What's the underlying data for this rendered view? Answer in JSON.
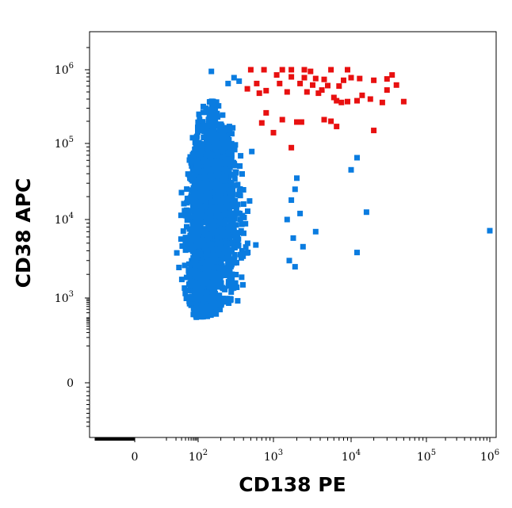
{
  "chart_data": {
    "type": "scatter",
    "xlabel": "CD138 PE",
    "ylabel": "CD38 APC",
    "x_scale": "biexponential",
    "y_scale": "biexponential",
    "xlim": [
      -500,
      1200000
    ],
    "ylim": [
      -200,
      2500000
    ],
    "grid": false,
    "x_ticks": [
      {
        "value": 0,
        "base": "0",
        "exp": ""
      },
      {
        "value": 100,
        "base": "10",
        "exp": "2"
      },
      {
        "value": 1000,
        "base": "10",
        "exp": "3"
      },
      {
        "value": 10000,
        "base": "10",
        "exp": "4"
      },
      {
        "value": 100000,
        "base": "10",
        "exp": "5"
      },
      {
        "value": 1000000,
        "base": "10",
        "exp": "6"
      }
    ],
    "y_ticks": [
      {
        "value": 0,
        "base": "0",
        "exp": ""
      },
      {
        "value": 1000,
        "base": "10",
        "exp": "3"
      },
      {
        "value": 10000,
        "base": "10",
        "exp": "4"
      },
      {
        "value": 100000,
        "base": "10",
        "exp": "5"
      },
      {
        "value": 1000000,
        "base": "10",
        "exp": "6"
      }
    ],
    "series": [
      {
        "color": "#0a7ce0",
        "cluster": {
          "center": [
            135,
            10000
          ],
          "x_spread": [
            50,
            450
          ],
          "y_spread": [
            200,
            380000
          ],
          "count": 2200
        },
        "points": [
          [
            150,
            950000
          ],
          [
            300,
            780000
          ],
          [
            350,
            700000
          ],
          [
            250,
            650000
          ],
          [
            2000,
            35000
          ],
          [
            1900,
            25000
          ],
          [
            1700,
            18000
          ],
          [
            2200,
            12000
          ],
          [
            1500,
            10000
          ],
          [
            3500,
            7000
          ],
          [
            1800,
            5800
          ],
          [
            2400,
            4500
          ],
          [
            1600,
            3000
          ],
          [
            1900,
            2500
          ],
          [
            12000,
            65000
          ],
          [
            10000,
            45000
          ],
          [
            16000,
            12500
          ],
          [
            12000,
            3800
          ],
          [
            1000000,
            7200
          ]
        ]
      },
      {
        "color": "#e81010",
        "points": [
          [
            500,
            1000000
          ],
          [
            750,
            1000000
          ],
          [
            1300,
            1000000
          ],
          [
            1700,
            1000000
          ],
          [
            2500,
            1000000
          ],
          [
            5500,
            1000000
          ],
          [
            9000,
            1000000
          ],
          [
            3000,
            950000
          ],
          [
            1100,
            850000
          ],
          [
            1700,
            800000
          ],
          [
            2500,
            780000
          ],
          [
            3500,
            760000
          ],
          [
            4500,
            740000
          ],
          [
            8000,
            720000
          ],
          [
            10000,
            780000
          ],
          [
            13000,
            760000
          ],
          [
            20000,
            720000
          ],
          [
            30000,
            750000
          ],
          [
            35000,
            850000
          ],
          [
            600,
            650000
          ],
          [
            1200,
            650000
          ],
          [
            2200,
            650000
          ],
          [
            3200,
            620000
          ],
          [
            5000,
            610000
          ],
          [
            7000,
            600000
          ],
          [
            40000,
            620000
          ],
          [
            450,
            550000
          ],
          [
            650,
            480000
          ],
          [
            800,
            520000
          ],
          [
            1500,
            500000
          ],
          [
            2700,
            500000
          ],
          [
            3800,
            480000
          ],
          [
            4200,
            530000
          ],
          [
            6000,
            420000
          ],
          [
            6500,
            380000
          ],
          [
            7500,
            360000
          ],
          [
            9000,
            370000
          ],
          [
            12000,
            380000
          ],
          [
            14000,
            450000
          ],
          [
            18000,
            400000
          ],
          [
            26000,
            360000
          ],
          [
            50000,
            370000
          ],
          [
            30000,
            530000
          ],
          [
            800,
            260000
          ],
          [
            1300,
            210000
          ],
          [
            2000,
            195000
          ],
          [
            2300,
            195000
          ],
          [
            4500,
            210000
          ],
          [
            5500,
            200000
          ],
          [
            6500,
            170000
          ],
          [
            20000,
            150000
          ],
          [
            700,
            190000
          ],
          [
            1000,
            140000
          ],
          [
            1700,
            88000
          ]
        ]
      }
    ]
  }
}
